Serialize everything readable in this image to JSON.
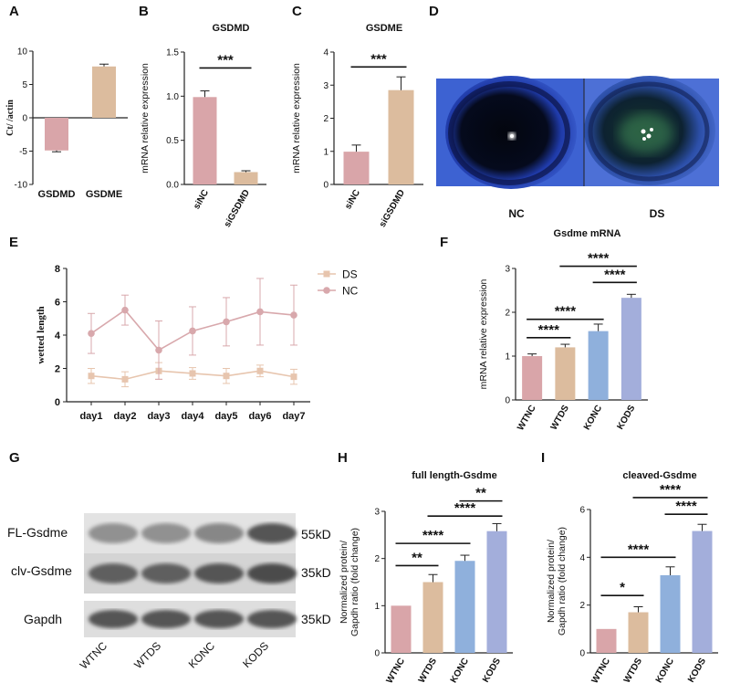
{
  "colors": {
    "pink": "#d9a5a9",
    "tan": "#dcbc9e",
    "blue": "#8fb0dc",
    "purple": "#a3aedb",
    "axis": "#222222",
    "ds_line": "#e7c5ae",
    "nc_line": "#d8a8ac"
  },
  "panel_labels": [
    "A",
    "B",
    "C",
    "D",
    "E",
    "F",
    "G",
    "H",
    "I"
  ],
  "chart_data": [
    {
      "id": "A",
      "type": "bar",
      "title": "",
      "ylabel": "Ct/  /actin",
      "categories": [
        "GSDMD",
        "GSDME"
      ],
      "values": [
        -4.9,
        7.7
      ],
      "errors": [
        0.2,
        0.35
      ],
      "ylim": [
        -10,
        10
      ],
      "yticks": [
        -10,
        -5,
        0,
        5,
        10
      ],
      "colors": [
        "#d9a5a9",
        "#dcbc9e"
      ],
      "sig": []
    },
    {
      "id": "B",
      "type": "bar",
      "title": "GSDMD",
      "ylabel": "mRNA relative expression",
      "categories": [
        "siNC",
        "siGSDMD"
      ],
      "values": [
        0.99,
        0.14
      ],
      "errors": [
        0.07,
        0.015
      ],
      "ylim": [
        0,
        1.5
      ],
      "yticks": [
        0.0,
        0.5,
        1.0,
        1.5
      ],
      "colors": [
        "#d9a5a9",
        "#dcbc9e"
      ],
      "sig": [
        {
          "a": 0,
          "b": 1,
          "label": "***",
          "level": 1.32
        }
      ]
    },
    {
      "id": "C",
      "type": "bar",
      "title": "GSDME",
      "ylabel": "mRNA relative expression",
      "categories": [
        "siNC",
        "siGSDMD"
      ],
      "values": [
        0.99,
        2.85
      ],
      "errors": [
        0.2,
        0.4
      ],
      "ylim": [
        0,
        4
      ],
      "yticks": [
        0,
        1,
        2,
        3,
        4
      ],
      "colors": [
        "#d9a5a9",
        "#dcbc9e"
      ],
      "sig": [
        {
          "a": 0,
          "b": 1,
          "label": "***",
          "level": 3.55
        }
      ]
    },
    {
      "id": "E",
      "type": "line",
      "title": "",
      "ylabel": "wetted length",
      "xlabel": "",
      "categories": [
        "day1",
        "day2",
        "day3",
        "day4",
        "day5",
        "day6",
        "day7"
      ],
      "ylim": [
        0,
        8
      ],
      "yticks": [
        0,
        2,
        4,
        6,
        8
      ],
      "legend_position": "top-right",
      "series": [
        {
          "name": "DS",
          "values": [
            1.55,
            1.35,
            1.85,
            1.7,
            1.55,
            1.85,
            1.5
          ],
          "errors": [
            0.45,
            0.45,
            0.5,
            0.35,
            0.45,
            0.35,
            0.45
          ],
          "color": "#e7c5ae",
          "marker": "square"
        },
        {
          "name": "NC",
          "values": [
            4.1,
            5.5,
            3.1,
            4.25,
            4.8,
            5.4,
            5.2
          ],
          "errors": [
            1.2,
            0.9,
            1.75,
            1.45,
            1.45,
            2.0,
            1.8
          ],
          "color": "#d8a8ac",
          "marker": "circle"
        }
      ]
    },
    {
      "id": "F",
      "type": "bar",
      "title": "Gsdme mRNA",
      "ylabel": "mRNA relative expression",
      "categories": [
        "WTNC",
        "WTDS",
        "KONC",
        "KODS"
      ],
      "values": [
        1.0,
        1.2,
        1.57,
        2.33
      ],
      "errors": [
        0.05,
        0.07,
        0.16,
        0.08
      ],
      "ylim": [
        0,
        3
      ],
      "yticks": [
        0,
        1,
        2,
        3
      ],
      "colors": [
        "#d9a5a9",
        "#dcbc9e",
        "#8fb0dc",
        "#a3aedb"
      ],
      "sig": [
        {
          "a": 0,
          "b": 1,
          "label": "****",
          "level": 1.42
        },
        {
          "a": 0,
          "b": 2,
          "label": "****",
          "level": 1.84
        },
        {
          "a": 2,
          "b": 3,
          "label": "****",
          "level": 2.68
        },
        {
          "a": 1,
          "b": 3,
          "label": "****",
          "level": 3.05
        }
      ]
    },
    {
      "id": "H",
      "type": "bar",
      "title": "full length-Gsdme",
      "ylabel": [
        "Normalized protein/",
        "Gapdh ratio (fold change)"
      ],
      "categories": [
        "WTNC",
        "WTDS",
        "KONC",
        "KODS"
      ],
      "values": [
        1.0,
        1.5,
        1.95,
        2.58
      ],
      "errors": [
        0.0,
        0.16,
        0.12,
        0.16
      ],
      "ylim": [
        0,
        3
      ],
      "yticks": [
        0,
        1,
        2,
        3
      ],
      "colors": [
        "#d9a5a9",
        "#dcbc9e",
        "#8fb0dc",
        "#a3aedb"
      ],
      "sig": [
        {
          "a": 0,
          "b": 1,
          "label": "**",
          "level": 1.85
        },
        {
          "a": 0,
          "b": 2,
          "label": "****",
          "level": 2.32
        },
        {
          "a": 1,
          "b": 3,
          "label": "****",
          "level": 2.9
        },
        {
          "a": 2,
          "b": 3,
          "label": "**",
          "level": 3.22
        }
      ]
    },
    {
      "id": "I",
      "type": "bar",
      "title": "cleaved-Gsdme",
      "ylabel": [
        "Normalized protein/",
        "Gapdh ratio (fold change)"
      ],
      "categories": [
        "WTNC",
        "WTDS",
        "KONC",
        "KODS"
      ],
      "values": [
        1.0,
        1.7,
        3.25,
        5.1
      ],
      "errors": [
        0.0,
        0.23,
        0.35,
        0.28
      ],
      "ylim": [
        0,
        6
      ],
      "yticks": [
        0,
        2,
        4,
        6
      ],
      "colors": [
        "#d9a5a9",
        "#dcbc9e",
        "#8fb0dc",
        "#a3aedb"
      ],
      "sig": [
        {
          "a": 0,
          "b": 1,
          "label": "*",
          "level": 2.4
        },
        {
          "a": 0,
          "b": 2,
          "label": "****",
          "level": 4.0
        },
        {
          "a": 2,
          "b": 3,
          "label": "****",
          "level": 5.8
        },
        {
          "a": 1,
          "b": 3,
          "label": "****",
          "level": 6.5
        }
      ]
    }
  ],
  "panel_D": {
    "labels": [
      "NC",
      "DS"
    ]
  },
  "panel_G": {
    "rows": [
      {
        "label": "FL-Gsdme",
        "size": "55kD",
        "intensity": [
          0.55,
          0.55,
          0.6,
          0.85
        ]
      },
      {
        "label": "clv-Gsdme",
        "size": "35kD",
        "intensity": [
          0.8,
          0.8,
          0.85,
          0.9
        ]
      },
      {
        "label": "Gapdh",
        "size": "35kD",
        "intensity": [
          0.85,
          0.85,
          0.85,
          0.85
        ]
      }
    ],
    "lanes": [
      "WTNC",
      "WTDS",
      "KONC",
      "KODS"
    ]
  }
}
